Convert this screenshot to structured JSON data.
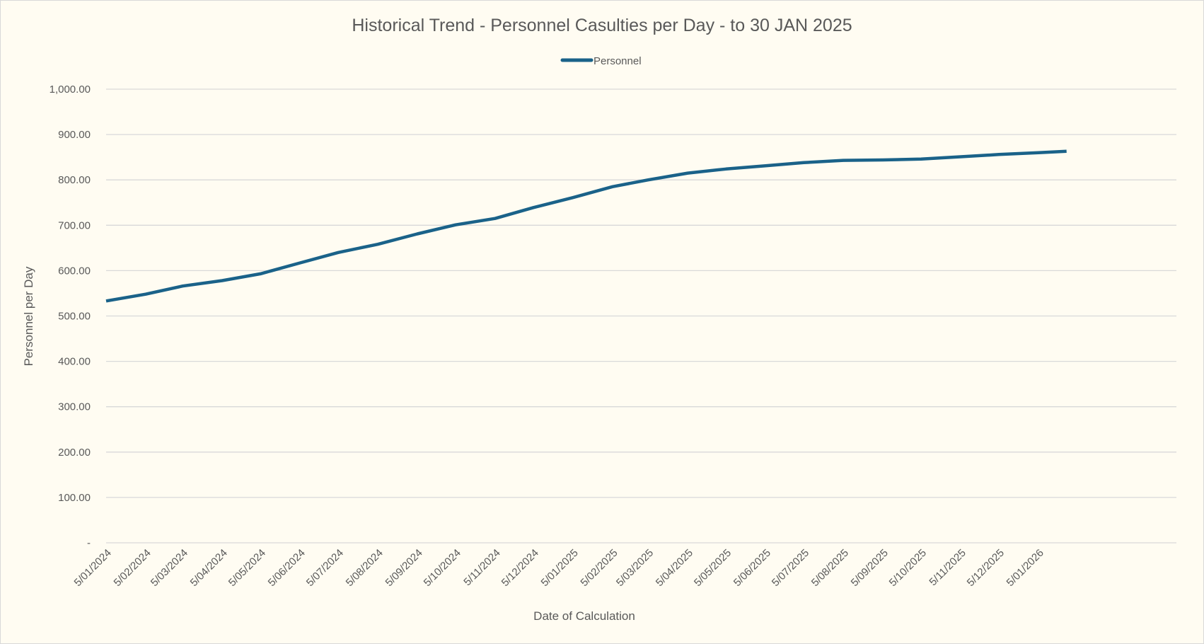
{
  "chart_data": {
    "type": "line",
    "title": "Historical Trend - Personnel Casulties per Day - to 30 JAN 2025",
    "xlabel": "Date of Calculation",
    "ylabel": "Personnel per Day",
    "ylim": [
      0,
      1000
    ],
    "yticks": [
      "-",
      "100.00",
      "200.00",
      "300.00",
      "400.00",
      "500.00",
      "600.00",
      "700.00",
      "800.00",
      "900.00",
      "1,000.00"
    ],
    "xticks": [
      "5/01/2024",
      "5/02/2024",
      "5/03/2024",
      "5/04/2024",
      "5/05/2024",
      "5/06/2024",
      "5/07/2024",
      "5/08/2024",
      "5/09/2024",
      "5/10/2024",
      "5/11/2024",
      "5/12/2024",
      "5/01/2025",
      "5/02/2025",
      "5/03/2025",
      "5/04/2025",
      "5/05/2025",
      "5/06/2025",
      "5/07/2025",
      "5/08/2025",
      "5/09/2025",
      "5/10/2025",
      "5/11/2025",
      "5/12/2025",
      "5/01/2026"
    ],
    "grid": true,
    "legend_position": "top",
    "series": [
      {
        "name": "Personnel",
        "color": "#1a6289",
        "x": [
          "2024-01-05",
          "2024-02-05",
          "2024-03-05",
          "2024-04-05",
          "2024-05-05",
          "2024-06-05",
          "2024-07-05",
          "2024-08-05",
          "2024-09-05",
          "2024-10-05",
          "2024-11-05",
          "2024-12-05",
          "2025-01-05",
          "2025-02-05",
          "2025-03-05",
          "2025-04-05",
          "2025-05-05",
          "2025-06-05",
          "2025-07-05",
          "2025-08-05",
          "2025-09-05",
          "2025-10-05",
          "2025-11-05",
          "2025-12-05",
          "2026-01-05",
          "2026-01-27"
        ],
        "values": [
          533,
          548,
          566,
          578,
          593,
          617,
          640,
          658,
          681,
          701,
          715,
          739,
          761,
          785,
          800,
          815,
          824,
          831,
          838,
          843,
          844,
          846,
          851,
          856,
          860,
          863
        ]
      }
    ]
  }
}
